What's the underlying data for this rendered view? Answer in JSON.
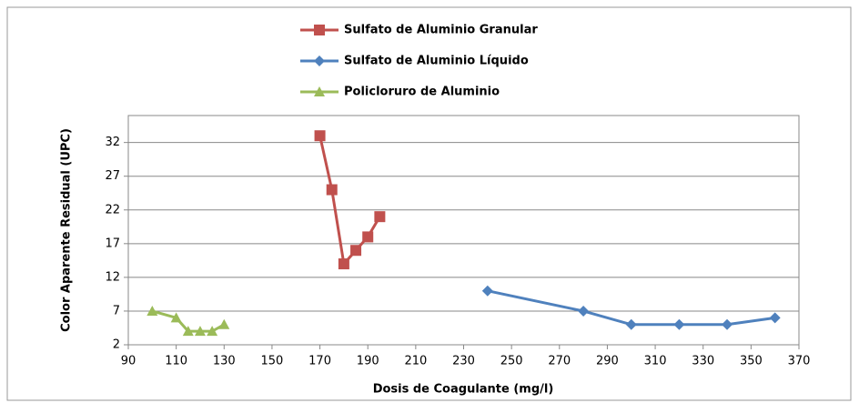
{
  "chart_data": {
    "type": "line",
    "xlabel": "Dosis de Coagulante (mg/l)",
    "ylabel": "Color Aparente Residual (UPC)",
    "xlim": [
      90,
      370
    ],
    "xticks": [
      90,
      110,
      130,
      150,
      170,
      190,
      210,
      230,
      250,
      270,
      290,
      310,
      330,
      350,
      370
    ],
    "ylim": [
      2,
      36
    ],
    "yticks": [
      2,
      7,
      12,
      17,
      22,
      27,
      32
    ],
    "grid": true,
    "legend": "top",
    "series": [
      {
        "name": "Sulfato de Aluminio Granular",
        "color": "#c0504d",
        "marker": "square",
        "x": [
          170,
          175,
          180,
          185,
          190,
          195
        ],
        "values": [
          33,
          25,
          14,
          16,
          18,
          21
        ]
      },
      {
        "name": "Sulfato de Aluminio Líquido",
        "color": "#4f81bd",
        "marker": "diamond",
        "x": [
          240,
          280,
          300,
          320,
          340,
          360
        ],
        "values": [
          10,
          7,
          5,
          5,
          5,
          6
        ]
      },
      {
        "name": "Policloruro de Aluminio",
        "color": "#9bbb59",
        "marker": "triangle",
        "x": [
          100,
          110,
          115,
          120,
          125,
          130
        ],
        "values": [
          7,
          6,
          4,
          4,
          4,
          5
        ]
      }
    ]
  }
}
